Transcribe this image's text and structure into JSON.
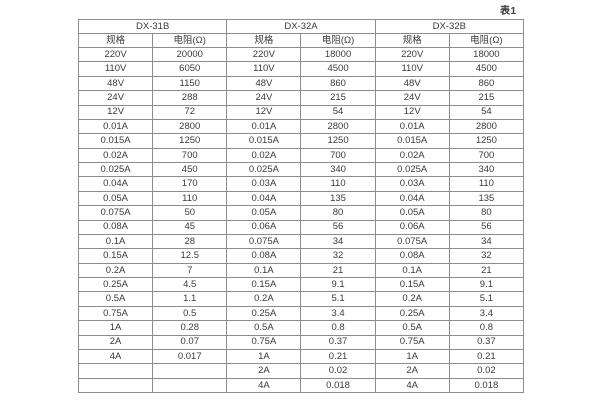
{
  "page": {
    "caption": "表1"
  },
  "colors": {
    "border": "#8c8c8c",
    "text": "#3a3a3a",
    "background": "#ffffff"
  },
  "table": {
    "groups": [
      {
        "name": "DX-31B"
      },
      {
        "name": "DX-32A"
      },
      {
        "name": "DX-32B"
      }
    ],
    "sub_headers": [
      "规格",
      "电阻(Ω)"
    ],
    "rows": [
      [
        "220V",
        "20000",
        "220V",
        "18000",
        "220V",
        "18000"
      ],
      [
        "110V",
        "6050",
        "110V",
        "4500",
        "110V",
        "4500"
      ],
      [
        "48V",
        "1150",
        "48V",
        "860",
        "48V",
        "860"
      ],
      [
        "24V",
        "288",
        "24V",
        "215",
        "24V",
        "215"
      ],
      [
        "12V",
        "72",
        "12V",
        "54",
        "12V",
        "54"
      ],
      [
        "0.01A",
        "2800",
        "0.01A",
        "2800",
        "0.01A",
        "2800"
      ],
      [
        "0.015A",
        "1250",
        "0.015A",
        "1250",
        "0.015A",
        "1250"
      ],
      [
        "0.02A",
        "700",
        "0.02A",
        "700",
        "0.02A",
        "700"
      ],
      [
        "0.025A",
        "450",
        "0.025A",
        "340",
        "0.025A",
        "340"
      ],
      [
        "0.04A",
        "170",
        "0.03A",
        "110",
        "0.03A",
        "110"
      ],
      [
        "0.05A",
        "110",
        "0.04A",
        "135",
        "0.04A",
        "135"
      ],
      [
        "0.075A",
        "50",
        "0.05A",
        "80",
        "0.05A",
        "80"
      ],
      [
        "0.08A",
        "45",
        "0.06A",
        "56",
        "0.06A",
        "56"
      ],
      [
        "0.1A",
        "28",
        "0.075A",
        "34",
        "0.075A",
        "34"
      ],
      [
        "0.15A",
        "12.5",
        "0.08A",
        "32",
        "0.08A",
        "32"
      ],
      [
        "0.2A",
        "7",
        "0.1A",
        "21",
        "0.1A",
        "21"
      ],
      [
        "0.25A",
        "4.5",
        "0.15A",
        "9.1",
        "0.15A",
        "9.1"
      ],
      [
        "0.5A",
        "1.1",
        "0.2A",
        "5.1",
        "0.2A",
        "5.1"
      ],
      [
        "0.75A",
        "0.5",
        "0.25A",
        "3.4",
        "0.25A",
        "3.4"
      ],
      [
        "1A",
        "0.28",
        "0.5A",
        "0.8",
        "0.5A",
        "0.8"
      ],
      [
        "2A",
        "0.07",
        "0.75A",
        "0.37",
        "0.75A",
        "0.37"
      ],
      [
        "4A",
        "0.017",
        "1A",
        "0.21",
        "1A",
        "0.21"
      ],
      [
        "",
        "",
        "2A",
        "0.02",
        "2A",
        "0.02"
      ],
      [
        "",
        "",
        "4A",
        "0.018",
        "4A",
        "0.018"
      ]
    ]
  }
}
